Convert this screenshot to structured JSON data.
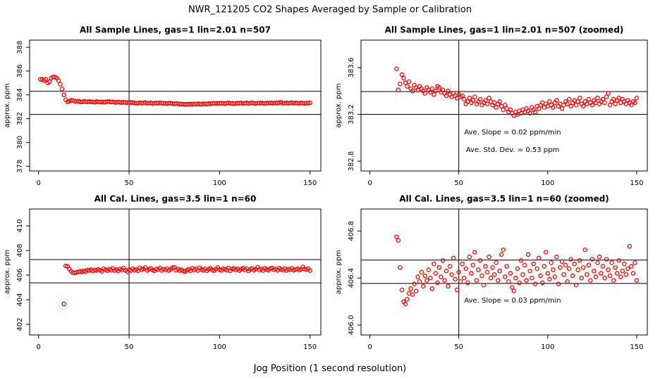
{
  "title": "NWR_121205  CO2 Shapes Averaged by Sample or Calibration",
  "x_label": "Jog Position (1 second resolution)",
  "chart_data": [
    {
      "type": "scatter",
      "title": "All Sample Lines, gas=1 lin=2.01 n=507",
      "y_label": "approx. ppm",
      "color": "#ff0000",
      "xlim": [
        -4.96,
        155.96
      ],
      "xticks": [
        0,
        50,
        100,
        150
      ],
      "ylim": [
        377.6,
        388.6
      ],
      "yticks": [
        378,
        380,
        382,
        384,
        386,
        388
      ],
      "vline": 50,
      "hlines": [
        384.3,
        382.35
      ],
      "x": [
        1,
        2,
        3,
        4,
        5,
        6,
        7,
        8,
        9,
        10,
        11,
        12,
        13,
        14,
        15,
        16,
        17,
        18,
        19,
        20,
        21,
        22,
        23,
        24,
        25,
        26,
        27,
        28,
        29,
        30,
        31,
        32,
        33,
        34,
        35,
        36,
        37,
        38,
        39,
        40,
        41,
        42,
        43,
        44,
        45,
        46,
        47,
        48,
        49,
        50,
        51,
        52,
        53,
        54,
        55,
        56,
        57,
        58,
        59,
        60,
        61,
        62,
        63,
        64,
        65,
        66,
        67,
        68,
        69,
        70,
        71,
        72,
        73,
        74,
        75,
        76,
        77,
        78,
        79,
        80,
        81,
        82,
        83,
        84,
        85,
        86,
        87,
        88,
        89,
        90,
        91,
        92,
        93,
        94,
        95,
        96,
        97,
        98,
        99,
        100,
        101,
        102,
        103,
        104,
        105,
        106,
        107,
        108,
        109,
        110,
        111,
        112,
        113,
        114,
        115,
        116,
        117,
        118,
        119,
        120,
        121,
        122,
        123,
        124,
        125,
        126,
        127,
        128,
        129,
        130,
        131,
        132,
        133,
        134,
        135,
        136,
        137,
        138,
        139,
        140,
        141,
        142,
        143,
        144,
        145,
        146,
        147,
        148,
        149,
        150
      ],
      "values": [
        385.3,
        385.3,
        385.2,
        385.3,
        385.0,
        385.1,
        385.4,
        385.5,
        385.5,
        385.4,
        385.2,
        384.9,
        384.5,
        384.0,
        383.59,
        383.41,
        383.46,
        383.54,
        383.51,
        383.47,
        383.44,
        383.48,
        383.42,
        383.4,
        383.45,
        383.43,
        383.41,
        383.44,
        383.42,
        383.4,
        383.38,
        383.43,
        383.41,
        383.39,
        383.42,
        383.37,
        383.4,
        383.44,
        383.43,
        383.39,
        383.41,
        383.38,
        383.36,
        383.4,
        383.37,
        383.35,
        383.38,
        383.36,
        383.34,
        383.37,
        383.35,
        383.36,
        383.33,
        383.29,
        383.31,
        383.34,
        383.3,
        383.32,
        383.35,
        383.29,
        383.31,
        383.33,
        383.28,
        383.3,
        383.32,
        383.29,
        383.34,
        383.31,
        383.28,
        383.3,
        383.26,
        383.29,
        383.31,
        383.27,
        383.24,
        383.28,
        383.25,
        383.22,
        383.24,
        383.21,
        383.19,
        383.22,
        383.2,
        383.23,
        383.21,
        383.24,
        383.22,
        383.25,
        383.23,
        383.21,
        383.26,
        383.24,
        383.22,
        383.27,
        383.25,
        383.28,
        383.3,
        383.26,
        383.29,
        383.27,
        383.31,
        383.28,
        383.26,
        383.3,
        383.32,
        383.27,
        383.29,
        383.25,
        383.28,
        383.31,
        383.29,
        383.33,
        383.27,
        383.3,
        383.32,
        383.28,
        383.31,
        383.34,
        383.29,
        383.27,
        383.31,
        383.29,
        383.33,
        383.3,
        383.28,
        383.32,
        383.3,
        383.34,
        383.29,
        383.31,
        383.33,
        383.3,
        383.35,
        383.38,
        383.28,
        383.31,
        383.33,
        383.29,
        383.32,
        383.34,
        383.3,
        383.33,
        383.31,
        383.29,
        383.32,
        383.3,
        383.28,
        383.31,
        383.3,
        383.34
      ]
    },
    {
      "type": "scatter",
      "title": "All Sample Lines, gas=1 lin=2.01 n=507 (zoomed)",
      "y_label": "approx. ppm",
      "color": "#ff0000",
      "xlim": [
        -4.96,
        155.96
      ],
      "xticks": [
        0,
        50,
        100,
        150
      ],
      "ylim": [
        382.716,
        383.835
      ],
      "yticks": [
        382.8,
        383.2,
        383.6
      ],
      "vline": 50,
      "hlines": [
        383.395,
        383.2
      ],
      "annotations": [
        "Ave. Slope =  0.02  ppm/min",
        "Ave. Std. Dev. =  0.53  ppm"
      ],
      "x": [
        15,
        16,
        17,
        18,
        19,
        20,
        21,
        22,
        23,
        24,
        25,
        26,
        27,
        28,
        29,
        30,
        31,
        32,
        33,
        34,
        35,
        36,
        37,
        38,
        39,
        40,
        41,
        42,
        43,
        44,
        45,
        46,
        47,
        48,
        49,
        50,
        51,
        52,
        53,
        54,
        55,
        56,
        57,
        58,
        59,
        60,
        61,
        62,
        63,
        64,
        65,
        66,
        67,
        68,
        69,
        70,
        71,
        72,
        73,
        74,
        75,
        76,
        77,
        78,
        79,
        80,
        81,
        82,
        83,
        84,
        85,
        86,
        87,
        88,
        89,
        90,
        91,
        92,
        93,
        94,
        95,
        96,
        97,
        98,
        99,
        100,
        101,
        102,
        103,
        104,
        105,
        106,
        107,
        108,
        109,
        110,
        111,
        112,
        113,
        114,
        115,
        116,
        117,
        118,
        119,
        120,
        121,
        122,
        123,
        124,
        125,
        126,
        127,
        128,
        129,
        130,
        131,
        132,
        133,
        134,
        135,
        136,
        137,
        138,
        139,
        140,
        141,
        142,
        143,
        144,
        145,
        146,
        147,
        148,
        149,
        150
      ],
      "values": [
        383.59,
        383.41,
        383.46,
        383.54,
        383.51,
        383.47,
        383.44,
        383.48,
        383.42,
        383.4,
        383.45,
        383.43,
        383.41,
        383.44,
        383.42,
        383.4,
        383.38,
        383.43,
        383.41,
        383.39,
        383.42,
        383.37,
        383.4,
        383.44,
        383.43,
        383.39,
        383.41,
        383.38,
        383.36,
        383.4,
        383.37,
        383.35,
        383.38,
        383.36,
        383.34,
        383.37,
        383.35,
        383.36,
        383.33,
        383.29,
        383.31,
        383.34,
        383.3,
        383.32,
        383.35,
        383.29,
        383.31,
        383.33,
        383.28,
        383.3,
        383.32,
        383.29,
        383.34,
        383.31,
        383.28,
        383.3,
        383.26,
        383.29,
        383.31,
        383.27,
        383.24,
        383.28,
        383.25,
        383.22,
        383.24,
        383.21,
        383.19,
        383.22,
        383.2,
        383.23,
        383.21,
        383.24,
        383.22,
        383.25,
        383.23,
        383.21,
        383.26,
        383.24,
        383.22,
        383.27,
        383.25,
        383.28,
        383.3,
        383.26,
        383.29,
        383.27,
        383.31,
        383.28,
        383.26,
        383.3,
        383.32,
        383.27,
        383.29,
        383.25,
        383.28,
        383.31,
        383.29,
        383.33,
        383.27,
        383.3,
        383.32,
        383.28,
        383.31,
        383.34,
        383.29,
        383.27,
        383.31,
        383.29,
        383.33,
        383.3,
        383.28,
        383.32,
        383.3,
        383.34,
        383.29,
        383.31,
        383.33,
        383.3,
        383.35,
        383.38,
        383.28,
        383.31,
        383.33,
        383.29,
        383.32,
        383.34,
        383.3,
        383.33,
        383.31,
        383.29,
        383.32,
        383.3,
        383.28,
        383.31,
        383.3,
        383.34
      ]
    },
    {
      "type": "scatter",
      "title": "All Cal. Lines, gas=3.5 lin=1 n=60",
      "y_label": "approx. ppm",
      "color": "#ff0000",
      "xlim": [
        -4.96,
        155.96
      ],
      "xticks": [
        0,
        50,
        100,
        150
      ],
      "ylim": [
        401.14,
        411.37
      ],
      "yticks": [
        402,
        404,
        406,
        408,
        410
      ],
      "vline": 50,
      "hlines": [
        407.26,
        405.37
      ],
      "x": [
        14,
        15,
        16,
        17,
        18,
        19,
        20,
        21,
        22,
        23,
        24,
        25,
        26,
        27,
        28,
        29,
        30,
        31,
        32,
        33,
        34,
        35,
        36,
        37,
        38,
        39,
        40,
        41,
        42,
        43,
        44,
        45,
        46,
        47,
        48,
        49,
        50,
        51,
        52,
        53,
        54,
        55,
        56,
        57,
        58,
        59,
        60,
        61,
        62,
        63,
        64,
        65,
        66,
        67,
        68,
        69,
        70,
        71,
        72,
        73,
        74,
        75,
        76,
        77,
        78,
        79,
        80,
        81,
        82,
        83,
        84,
        85,
        86,
        87,
        88,
        89,
        90,
        91,
        92,
        93,
        94,
        95,
        96,
        97,
        98,
        99,
        100,
        101,
        102,
        103,
        104,
        105,
        106,
        107,
        108,
        109,
        110,
        111,
        112,
        113,
        114,
        115,
        116,
        117,
        118,
        119,
        120,
        121,
        122,
        123,
        124,
        125,
        126,
        127,
        128,
        129,
        130,
        131,
        132,
        133,
        134,
        135,
        136,
        137,
        138,
        139,
        140,
        141,
        142,
        143,
        144,
        145,
        146,
        147,
        148,
        149,
        150
      ],
      "values": [
        403.66,
        406.75,
        406.72,
        406.49,
        406.3,
        406.2,
        406.18,
        406.22,
        406.27,
        406.31,
        406.26,
        406.35,
        406.29,
        406.41,
        406.37,
        406.45,
        406.33,
        406.42,
        406.38,
        406.47,
        406.4,
        406.31,
        406.52,
        406.44,
        406.36,
        406.49,
        406.41,
        406.55,
        406.38,
        406.46,
        406.33,
        406.5,
        406.43,
        406.57,
        406.39,
        406.3,
        406.45,
        406.37,
        406.52,
        406.4,
        406.48,
        406.36,
        406.58,
        406.44,
        406.51,
        406.62,
        406.38,
        406.47,
        406.55,
        406.42,
        406.34,
        406.5,
        406.45,
        406.58,
        406.4,
        406.49,
        406.43,
        406.53,
        406.38,
        406.46,
        406.6,
        406.64,
        406.41,
        406.5,
        406.37,
        406.44,
        406.32,
        406.29,
        406.4,
        406.48,
        406.36,
        406.55,
        406.43,
        406.51,
        406.38,
        406.6,
        406.46,
        406.4,
        406.52,
        406.35,
        406.48,
        406.57,
        406.42,
        406.36,
        406.5,
        406.62,
        406.44,
        406.39,
        406.53,
        406.47,
        406.41,
        406.58,
        406.35,
        406.49,
        406.54,
        406.43,
        406.51,
        406.37,
        406.48,
        406.56,
        406.42,
        406.52,
        406.34,
        406.47,
        406.55,
        406.4,
        406.49,
        406.64,
        406.43,
        406.51,
        406.38,
        406.56,
        406.46,
        406.41,
        406.53,
        406.58,
        406.44,
        406.5,
        406.4,
        406.56,
        406.47,
        406.42,
        406.53,
        406.38,
        406.49,
        406.44,
        406.55,
        406.41,
        406.46,
        406.52,
        406.43,
        406.48,
        406.67,
        406.5,
        406.44,
        406.53,
        406.38
      ]
    },
    {
      "type": "scatter",
      "title": "All Cal. Lines, gas=3.5 lin=1 n=60 (zoomed)",
      "y_label": "approx. ppm",
      "color": "#ff0000",
      "xlim": [
        -4.96,
        155.96
      ],
      "xticks": [
        0,
        50,
        100,
        150
      ],
      "ylim": [
        405.916,
        406.987
      ],
      "yticks": [
        {
          "value": 406,
          "label": "406.0"
        },
        406.4,
        406.8
      ],
      "vline": 50,
      "hlines": [
        406.553,
        406.354
      ],
      "annotations": [
        "Ave. Slope =  0.03  ppm/min"
      ],
      "x": [
        15,
        16,
        17,
        18,
        19,
        20,
        21,
        22,
        23,
        24,
        25,
        26,
        27,
        28,
        29,
        30,
        31,
        32,
        33,
        34,
        35,
        36,
        37,
        38,
        39,
        40,
        41,
        42,
        43,
        44,
        45,
        46,
        47,
        48,
        49,
        50,
        51,
        52,
        53,
        54,
        55,
        56,
        57,
        58,
        59,
        60,
        61,
        62,
        63,
        64,
        65,
        66,
        67,
        68,
        69,
        70,
        71,
        72,
        73,
        74,
        75,
        76,
        77,
        78,
        79,
        80,
        81,
        82,
        83,
        84,
        85,
        86,
        87,
        88,
        89,
        90,
        91,
        92,
        93,
        94,
        95,
        96,
        97,
        98,
        99,
        100,
        101,
        102,
        103,
        104,
        105,
        106,
        107,
        108,
        109,
        110,
        111,
        112,
        113,
        114,
        115,
        116,
        117,
        118,
        119,
        120,
        121,
        122,
        123,
        124,
        125,
        126,
        127,
        128,
        129,
        130,
        131,
        132,
        133,
        134,
        135,
        136,
        137,
        138,
        139,
        140,
        141,
        142,
        143,
        144,
        145,
        146,
        147,
        148,
        149,
        150
      ],
      "values": [
        406.75,
        406.72,
        406.49,
        406.3,
        406.2,
        406.18,
        406.22,
        406.27,
        406.31,
        406.26,
        406.35,
        406.29,
        406.41,
        406.37,
        406.45,
        406.33,
        406.42,
        406.38,
        406.47,
        406.4,
        406.31,
        406.52,
        406.44,
        406.36,
        406.49,
        406.41,
        406.55,
        406.38,
        406.46,
        406.33,
        406.5,
        406.43,
        406.57,
        406.39,
        406.3,
        406.45,
        406.37,
        406.52,
        406.4,
        406.48,
        406.36,
        406.58,
        406.44,
        406.51,
        406.62,
        406.38,
        406.47,
        406.55,
        406.42,
        406.34,
        406.5,
        406.45,
        406.58,
        406.4,
        406.49,
        406.43,
        406.53,
        406.38,
        406.46,
        406.6,
        406.64,
        406.41,
        406.5,
        406.37,
        406.44,
        406.32,
        406.29,
        406.4,
        406.48,
        406.36,
        406.55,
        406.43,
        406.51,
        406.38,
        406.6,
        406.46,
        406.4,
        406.52,
        406.35,
        406.48,
        406.57,
        406.42,
        406.36,
        406.5,
        406.62,
        406.44,
        406.39,
        406.53,
        406.47,
        406.41,
        406.58,
        406.35,
        406.49,
        406.54,
        406.43,
        406.51,
        406.37,
        406.48,
        406.56,
        406.42,
        406.52,
        406.34,
        406.47,
        406.55,
        406.4,
        406.49,
        406.64,
        406.43,
        406.51,
        406.38,
        406.56,
        406.46,
        406.41,
        406.53,
        406.58,
        406.44,
        406.5,
        406.4,
        406.56,
        406.47,
        406.42,
        406.53,
        406.38,
        406.49,
        406.44,
        406.55,
        406.41,
        406.46,
        406.52,
        406.43,
        406.48,
        406.67,
        406.5,
        406.44,
        406.53,
        406.38
      ]
    }
  ]
}
